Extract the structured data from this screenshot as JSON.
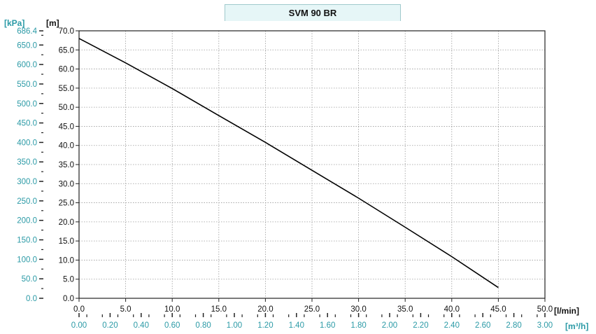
{
  "chart_data": {
    "type": "line",
    "title": "SVM 90 BR",
    "y_unit_left": "[m]",
    "y_unit_secondary": "[kPa]",
    "x_unit": "[l/min]",
    "x_unit_secondary": "[m³/h]",
    "xlim": [
      0,
      50
    ],
    "ylim": [
      0,
      70
    ],
    "x_ticks": [
      "0.0",
      "5.0",
      "10.0",
      "15.0",
      "20.0",
      "25.0",
      "30.0",
      "35.0",
      "40.0",
      "45.0",
      "50.0"
    ],
    "y_ticks": [
      "0.0",
      "5.0",
      "10.0",
      "15.0",
      "20.0",
      "25.0",
      "30.0",
      "35.0",
      "40.0",
      "45.0",
      "50.0",
      "55.0",
      "60.0",
      "65.0",
      "70.0"
    ],
    "kpa_ticks": [
      {
        "label": "0.0",
        "value": 0
      },
      {
        "label": "50.0",
        "value": 50
      },
      {
        "label": "100.0",
        "value": 100
      },
      {
        "label": "150.0",
        "value": 150
      },
      {
        "label": "200.0",
        "value": 200
      },
      {
        "label": "250.0",
        "value": 250
      },
      {
        "label": "300.0",
        "value": 300
      },
      {
        "label": "350.0",
        "value": 350
      },
      {
        "label": "400.0",
        "value": 400
      },
      {
        "label": "450.0",
        "value": 450
      },
      {
        "label": "500.0",
        "value": 500
      },
      {
        "label": "550.0",
        "value": 550
      },
      {
        "label": "600.0",
        "value": 600
      },
      {
        "label": "650.0",
        "value": 650
      },
      {
        "label": "686.4",
        "value": 686.4
      }
    ],
    "m3h_ticks": [
      "0.00",
      "0.20",
      "0.40",
      "0.60",
      "0.80",
      "1.00",
      "1.20",
      "1.40",
      "1.60",
      "1.80",
      "2.00",
      "2.20",
      "2.40",
      "2.60",
      "2.80",
      "3.00"
    ],
    "grid": true,
    "series": [
      {
        "x": [
          0,
          5,
          10,
          15,
          20,
          25,
          30,
          35,
          40,
          45
        ],
        "y": [
          68.0,
          61.6,
          54.9,
          47.8,
          40.8,
          33.5,
          26.2,
          18.6,
          10.9,
          2.8
        ]
      }
    ],
    "colors": {
      "line": "#000000",
      "kpa": "#2b9aa6",
      "grid": "#9a9a9a"
    }
  }
}
